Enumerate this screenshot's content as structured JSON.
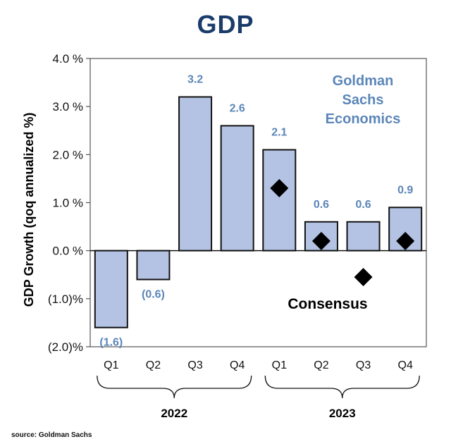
{
  "title": "GDP",
  "source": "source: Goldman Sachs",
  "chart_data": {
    "type": "bar",
    "title": "GDP",
    "ylabel": "GDP Growth (qoq annualized %)",
    "xlabel": "",
    "ylim": [
      -2.0,
      4.0
    ],
    "y_ticks": [
      {
        "value": 4.0,
        "label": "4.0 %"
      },
      {
        "value": 3.0,
        "label": "3.0 %"
      },
      {
        "value": 2.0,
        "label": "2.0 %"
      },
      {
        "value": 1.0,
        "label": "1.0 %"
      },
      {
        "value": 0.0,
        "label": "0.0 %"
      },
      {
        "value": -1.0,
        "label": "(1.0)%"
      },
      {
        "value": -2.0,
        "label": "(2.0)%"
      }
    ],
    "categories": [
      "Q1",
      "Q2",
      "Q3",
      "Q4",
      "Q1",
      "Q2",
      "Q3",
      "Q4"
    ],
    "groups": [
      {
        "label": "2022",
        "start": 0,
        "end": 3
      },
      {
        "label": "2023",
        "start": 4,
        "end": 7
      }
    ],
    "series": [
      {
        "name": "Goldman Sachs Economics",
        "type": "bar",
        "values": [
          -1.6,
          -0.6,
          3.2,
          2.6,
          2.1,
          0.6,
          0.6,
          0.9
        ],
        "data_labels": [
          "(1.6)",
          "(0.6)",
          "3.2",
          "2.6",
          "2.1",
          "0.6",
          "0.6",
          "0.9"
        ]
      },
      {
        "name": "Consensus",
        "type": "scatter",
        "marker": "diamond",
        "values": [
          null,
          null,
          null,
          null,
          1.3,
          0.2,
          -0.55,
          0.2
        ]
      }
    ],
    "annotations": {
      "gs_label": [
        "Goldman",
        "Sachs",
        "Economics"
      ],
      "consensus_label": "Consensus"
    },
    "colors": {
      "bar_fill": "#b4c3e4",
      "label_blue": "#5b86b8",
      "axis": "#000000",
      "marker": "#000000"
    }
  }
}
